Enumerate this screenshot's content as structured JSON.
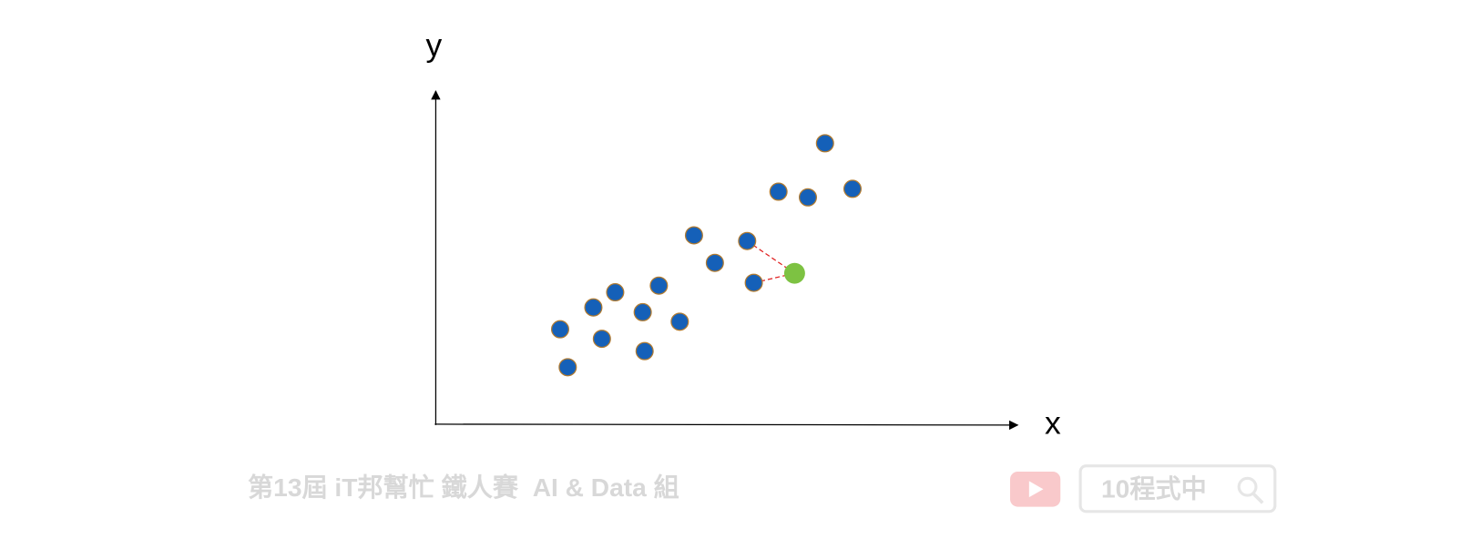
{
  "axes": {
    "y_label": "y",
    "x_label": "x"
  },
  "footer": {
    "event": "第13屆 iT邦幫忙 鐵人賽",
    "group": "AI & Data 組",
    "search": "10程式中"
  }
}
